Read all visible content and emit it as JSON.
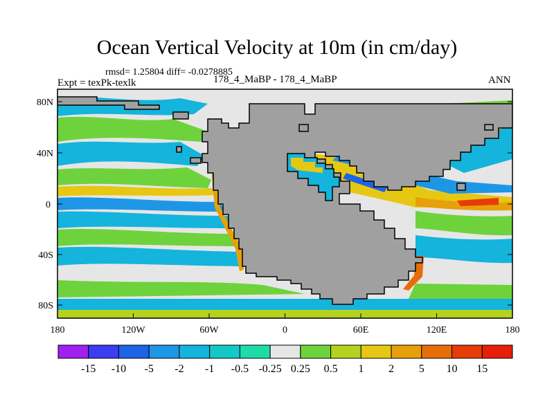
{
  "title": "Ocean Vertical Velocity at 10m (in cm/day)",
  "stats_line": "rmsd= 1.25804 diff= -0.0278885",
  "left_label": "Expt = texPk-texlk",
  "center_label": "178_4_MaBP - 178_4_MaBP",
  "right_label": "ANN",
  "lat_ticks": [
    "80N",
    "40N",
    "0",
    "40S",
    "80S"
  ],
  "lon_ticks": [
    "180",
    "120W",
    "60W",
    "0",
    "60E",
    "120E",
    "180"
  ],
  "colorbar": {
    "labels": [
      "-15",
      "-10",
      "-5",
      "-2",
      "-1",
      "-0.5",
      "-0.25",
      "0.25",
      "0.5",
      "1",
      "2",
      "5",
      "10",
      "15"
    ],
    "colors": [
      "#a020f0",
      "#3c3cf0",
      "#1e64e6",
      "#1e96e6",
      "#14b4dc",
      "#14c8c8",
      "#1edcaa",
      "#e6e6e6",
      "#6ed23c",
      "#b4d21e",
      "#e6c814",
      "#e6a00a",
      "#e66e0a",
      "#e63c0a",
      "#e61e0a"
    ]
  },
  "colors": {
    "land": "#a0a0a0",
    "missing_ocean": "#e6e6e6"
  }
}
